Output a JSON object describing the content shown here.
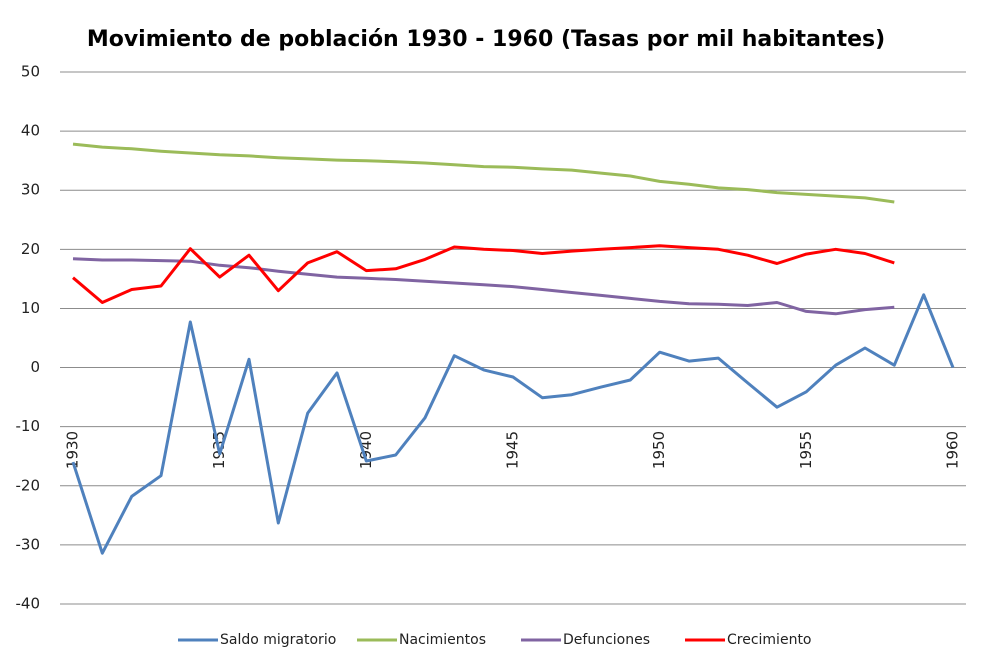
{
  "chart_data": {
    "type": "line",
    "title": "Movimiento de población 1930 - 1960 (Tasas por mil habitantes)",
    "x": [
      1930,
      1931,
      1932,
      1933,
      1934,
      1935,
      1936,
      1937,
      1938,
      1939,
      1940,
      1941,
      1942,
      1943,
      1944,
      1945,
      1946,
      1947,
      1948,
      1949,
      1950,
      1951,
      1952,
      1953,
      1954,
      1955,
      1956,
      1957,
      1958,
      1959,
      1960
    ],
    "xlim": [
      1930,
      1960
    ],
    "xticks": [
      1930,
      1935,
      1940,
      1945,
      1950,
      1955,
      1960
    ],
    "ylim": [
      -40,
      50
    ],
    "yticks": [
      -40,
      -30,
      -20,
      -10,
      0,
      10,
      20,
      30,
      40,
      50
    ],
    "grid": true,
    "legend": "bottom",
    "series": [
      {
        "name": "Saldo migratorio",
        "color": "#4f81bd",
        "values": [
          -16,
          -31.4,
          -21.8,
          -18.3,
          7.7,
          -14.6,
          1.4,
          -26.3,
          -7.7,
          -0.9,
          -15.8,
          -14.8,
          -8.5,
          2.0,
          -0.4,
          -1.6,
          -5.1,
          -4.6,
          -3.3,
          -2.1,
          2.6,
          1.1,
          1.6,
          -2.6,
          -6.7,
          -4.1,
          0.4,
          3.3,
          0.4,
          12.3,
          0
        ]
      },
      {
        "name": "Nacimientos",
        "color": "#9bbb59",
        "values": [
          37.8,
          37.3,
          37.0,
          36.6,
          36.3,
          36.0,
          35.8,
          35.5,
          35.3,
          35.1,
          35.0,
          34.8,
          34.6,
          34.3,
          34.0,
          33.9,
          33.6,
          33.4,
          32.9,
          32.4,
          31.5,
          31.0,
          30.4,
          30.1,
          29.6,
          29.3,
          29.0,
          28.7,
          28.0,
          null,
          null
        ]
      },
      {
        "name": "Defunciones",
        "color": "#8064a2",
        "values": [
          18.4,
          18.2,
          18.2,
          18.1,
          18.0,
          17.3,
          16.9,
          16.3,
          15.8,
          15.3,
          15.1,
          14.9,
          14.6,
          14.3,
          14.0,
          13.7,
          13.2,
          12.7,
          12.2,
          11.7,
          11.2,
          10.8,
          10.7,
          10.5,
          11.0,
          9.5,
          9.1,
          9.8,
          10.2,
          null,
          null
        ]
      },
      {
        "name": "Crecimiento",
        "color": "#ff0000",
        "values": [
          15.2,
          11.0,
          13.2,
          13.8,
          20.1,
          15.3,
          19.0,
          13.0,
          17.7,
          19.6,
          16.4,
          16.7,
          18.3,
          20.4,
          20.0,
          19.8,
          19.3,
          19.7,
          20.0,
          20.3,
          20.6,
          20.3,
          20.0,
          19.0,
          17.6,
          19.2,
          20.0,
          19.3,
          17.7,
          null,
          null
        ]
      }
    ]
  }
}
